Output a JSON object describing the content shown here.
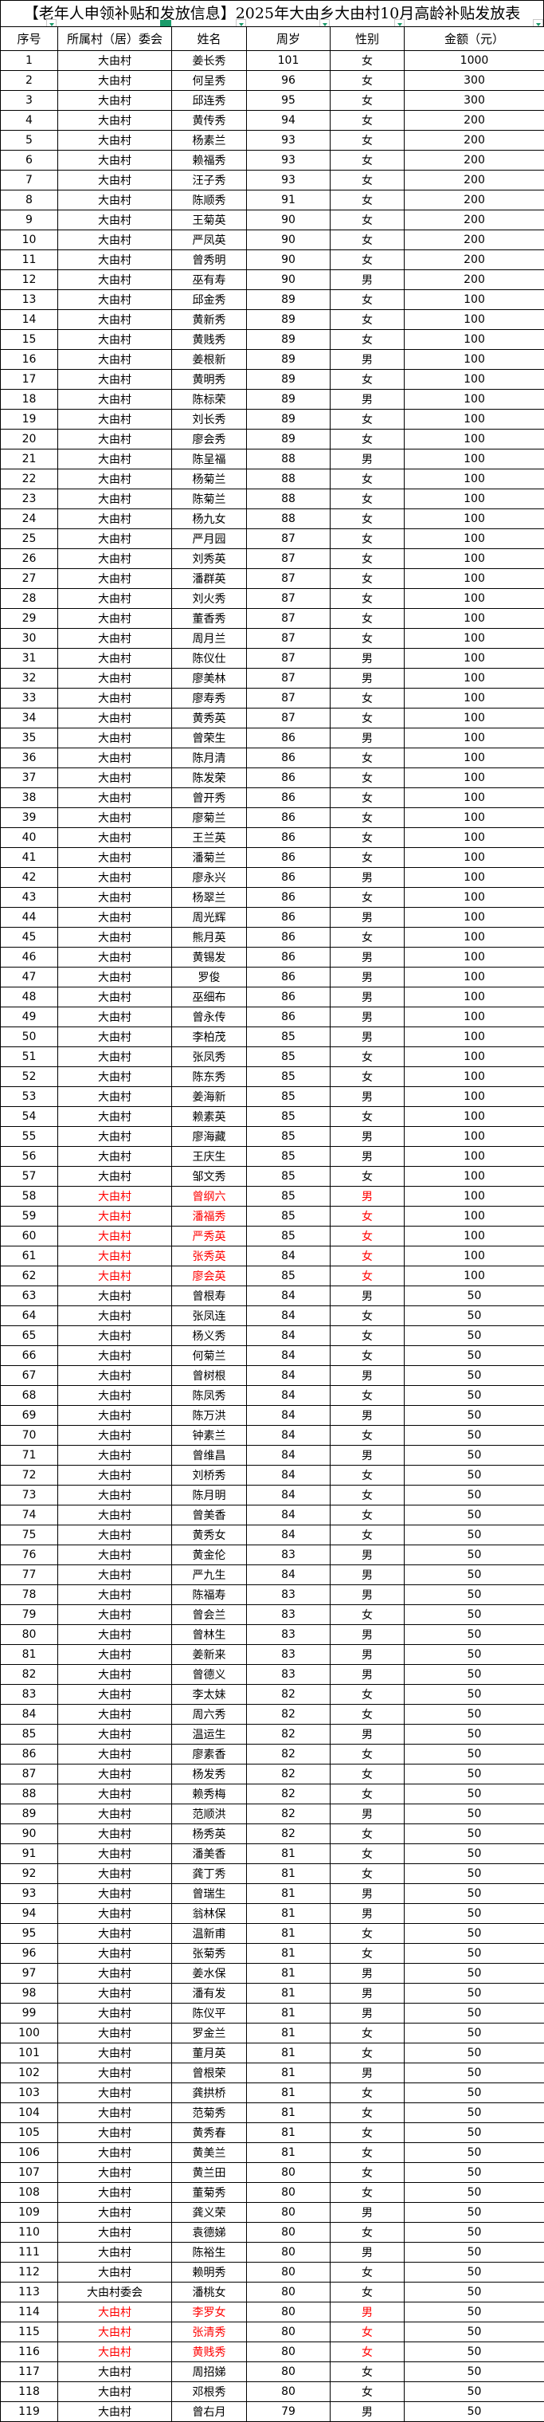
{
  "title": "【老年人申领补贴和发放信息】2025年大由乡大由村10月高龄补贴发放表",
  "colors": {
    "highlight": "#ff0000",
    "filter_accent": "#1a9b6a"
  },
  "headers": [
    "序号",
    "所属村（居）委会",
    "姓名",
    "周岁",
    "性别",
    "金额（元）"
  ],
  "rows": [
    [
      "1",
      "大由村",
      "姜长秀",
      "101",
      "女",
      "1000",
      false
    ],
    [
      "2",
      "大由村",
      "何呈秀",
      "96",
      "女",
      "300",
      false
    ],
    [
      "3",
      "大由村",
      "邱连秀",
      "95",
      "女",
      "300",
      false
    ],
    [
      "4",
      "大由村",
      "黄传秀",
      "94",
      "女",
      "200",
      false
    ],
    [
      "5",
      "大由村",
      "杨素兰",
      "93",
      "女",
      "200",
      false
    ],
    [
      "6",
      "大由村",
      "赖福秀",
      "93",
      "女",
      "200",
      false
    ],
    [
      "7",
      "大由村",
      "汪子秀",
      "93",
      "女",
      "200",
      false
    ],
    [
      "8",
      "大由村",
      "陈顺秀",
      "91",
      "女",
      "200",
      false
    ],
    [
      "9",
      "大由村",
      "王菊英",
      "90",
      "女",
      "200",
      false
    ],
    [
      "10",
      "大由村",
      "严凤英",
      "90",
      "女",
      "200",
      false
    ],
    [
      "11",
      "大由村",
      "曾秀明",
      "90",
      "女",
      "200",
      false
    ],
    [
      "12",
      "大由村",
      "巫有寿",
      "90",
      "男",
      "200",
      false
    ],
    [
      "13",
      "大由村",
      "邱金秀",
      "89",
      "女",
      "100",
      false
    ],
    [
      "14",
      "大由村",
      "黄新秀",
      "89",
      "女",
      "100",
      false
    ],
    [
      "15",
      "大由村",
      "黄贱秀",
      "89",
      "女",
      "100",
      false
    ],
    [
      "16",
      "大由村",
      "姜根新",
      "89",
      "男",
      "100",
      false
    ],
    [
      "17",
      "大由村",
      "黄明秀",
      "89",
      "女",
      "100",
      false
    ],
    [
      "18",
      "大由村",
      "陈标荣",
      "89",
      "男",
      "100",
      false
    ],
    [
      "19",
      "大由村",
      "刘长秀",
      "89",
      "女",
      "100",
      false
    ],
    [
      "20",
      "大由村",
      "廖会秀",
      "89",
      "女",
      "100",
      false
    ],
    [
      "21",
      "大由村",
      "陈呈福",
      "88",
      "男",
      "100",
      false
    ],
    [
      "22",
      "大由村",
      "杨菊兰",
      "88",
      "女",
      "100",
      false
    ],
    [
      "23",
      "大由村",
      "陈菊兰",
      "88",
      "女",
      "100",
      false
    ],
    [
      "24",
      "大由村",
      "杨九女",
      "88",
      "女",
      "100",
      false
    ],
    [
      "25",
      "大由村",
      "严月园",
      "87",
      "女",
      "100",
      false
    ],
    [
      "26",
      "大由村",
      "刘秀英",
      "87",
      "女",
      "100",
      false
    ],
    [
      "27",
      "大由村",
      "潘群英",
      "87",
      "女",
      "100",
      false
    ],
    [
      "28",
      "大由村",
      "刘火秀",
      "87",
      "女",
      "100",
      false
    ],
    [
      "29",
      "大由村",
      "董香秀",
      "87",
      "女",
      "100",
      false
    ],
    [
      "30",
      "大由村",
      "周月兰",
      "87",
      "女",
      "100",
      false
    ],
    [
      "31",
      "大由村",
      "陈仪仕",
      "87",
      "男",
      "100",
      false
    ],
    [
      "32",
      "大由村",
      "廖美林",
      "87",
      "男",
      "100",
      false
    ],
    [
      "33",
      "大由村",
      "廖寿秀",
      "87",
      "女",
      "100",
      false
    ],
    [
      "34",
      "大由村",
      "黄秀英",
      "87",
      "女",
      "100",
      false
    ],
    [
      "35",
      "大由村",
      "曾荣生",
      "86",
      "男",
      "100",
      false
    ],
    [
      "36",
      "大由村",
      "陈月清",
      "86",
      "女",
      "100",
      false
    ],
    [
      "37",
      "大由村",
      "陈发荣",
      "86",
      "女",
      "100",
      false
    ],
    [
      "38",
      "大由村",
      "曾开秀",
      "86",
      "女",
      "100",
      false
    ],
    [
      "39",
      "大由村",
      "廖菊兰",
      "86",
      "女",
      "100",
      false
    ],
    [
      "40",
      "大由村",
      "王兰英",
      "86",
      "女",
      "100",
      false
    ],
    [
      "41",
      "大由村",
      "潘菊兰",
      "86",
      "女",
      "100",
      false
    ],
    [
      "42",
      "大由村",
      "廖永兴",
      "86",
      "男",
      "100",
      false
    ],
    [
      "43",
      "大由村",
      "杨翠兰",
      "86",
      "女",
      "100",
      false
    ],
    [
      "44",
      "大由村",
      "周光辉",
      "86",
      "男",
      "100",
      false
    ],
    [
      "45",
      "大由村",
      "熊月英",
      "86",
      "女",
      "100",
      false
    ],
    [
      "46",
      "大由村",
      "黄锡发",
      "86",
      "男",
      "100",
      false
    ],
    [
      "47",
      "大由村",
      "罗俊",
      "86",
      "男",
      "100",
      false
    ],
    [
      "48",
      "大由村",
      "巫细布",
      "86",
      "男",
      "100",
      false
    ],
    [
      "49",
      "大由村",
      "曾永传",
      "86",
      "男",
      "100",
      false
    ],
    [
      "50",
      "大由村",
      "李柏茂",
      "85",
      "男",
      "100",
      false
    ],
    [
      "51",
      "大由村",
      "张凤秀",
      "85",
      "女",
      "100",
      false
    ],
    [
      "52",
      "大由村",
      "陈东秀",
      "85",
      "女",
      "100",
      false
    ],
    [
      "53",
      "大由村",
      "姜海新",
      "85",
      "男",
      "100",
      false
    ],
    [
      "54",
      "大由村",
      "赖素英",
      "85",
      "女",
      "100",
      false
    ],
    [
      "55",
      "大由村",
      "廖海藏",
      "85",
      "男",
      "100",
      false
    ],
    [
      "56",
      "大由村",
      "王庆生",
      "85",
      "男",
      "100",
      false
    ],
    [
      "57",
      "大由村",
      "邹文秀",
      "85",
      "女",
      "100",
      false
    ],
    [
      "58",
      "大由村",
      "曾纲六",
      "85",
      "男",
      "100",
      true
    ],
    [
      "59",
      "大由村",
      "潘福秀",
      "85",
      "女",
      "100",
      true
    ],
    [
      "60",
      "大由村",
      "严秀英",
      "85",
      "女",
      "100",
      true
    ],
    [
      "61",
      "大由村",
      "张秀英",
      "84",
      "女",
      "100",
      true
    ],
    [
      "62",
      "大由村",
      "廖会英",
      "85",
      "女",
      "100",
      true
    ],
    [
      "63",
      "大由村",
      "曾根寿",
      "84",
      "男",
      "50",
      false
    ],
    [
      "64",
      "大由村",
      "张凤连",
      "84",
      "女",
      "50",
      false
    ],
    [
      "65",
      "大由村",
      "杨义秀",
      "84",
      "女",
      "50",
      false
    ],
    [
      "66",
      "大由村",
      "何菊兰",
      "84",
      "女",
      "50",
      false
    ],
    [
      "67",
      "大由村",
      "曾树根",
      "84",
      "男",
      "50",
      false
    ],
    [
      "68",
      "大由村",
      "陈凤秀",
      "84",
      "女",
      "50",
      false
    ],
    [
      "69",
      "大由村",
      "陈万洪",
      "84",
      "男",
      "50",
      false
    ],
    [
      "70",
      "大由村",
      "钟素兰",
      "84",
      "女",
      "50",
      false
    ],
    [
      "71",
      "大由村",
      "曾维昌",
      "84",
      "男",
      "50",
      false
    ],
    [
      "72",
      "大由村",
      "刘桥秀",
      "84",
      "女",
      "50",
      false
    ],
    [
      "73",
      "大由村",
      "陈月明",
      "84",
      "女",
      "50",
      false
    ],
    [
      "74",
      "大由村",
      "曾美香",
      "84",
      "女",
      "50",
      false
    ],
    [
      "75",
      "大由村",
      "黄秀女",
      "84",
      "女",
      "50",
      false
    ],
    [
      "76",
      "大由村",
      "黄金伦",
      "83",
      "男",
      "50",
      false
    ],
    [
      "77",
      "大由村",
      "严九生",
      "84",
      "男",
      "50",
      false
    ],
    [
      "78",
      "大由村",
      "陈福寿",
      "83",
      "男",
      "50",
      false
    ],
    [
      "79",
      "大由村",
      "曾会兰",
      "83",
      "女",
      "50",
      false
    ],
    [
      "80",
      "大由村",
      "曾林生",
      "83",
      "男",
      "50",
      false
    ],
    [
      "81",
      "大由村",
      "姜新来",
      "83",
      "男",
      "50",
      false
    ],
    [
      "82",
      "大由村",
      "曾德义",
      "83",
      "男",
      "50",
      false
    ],
    [
      "83",
      "大由村",
      "李太妹",
      "82",
      "女",
      "50",
      false
    ],
    [
      "84",
      "大由村",
      "周六秀",
      "82",
      "女",
      "50",
      false
    ],
    [
      "85",
      "大由村",
      "温运生",
      "82",
      "男",
      "50",
      false
    ],
    [
      "86",
      "大由村",
      "廖素香",
      "82",
      "女",
      "50",
      false
    ],
    [
      "87",
      "大由村",
      "杨发秀",
      "82",
      "女",
      "50",
      false
    ],
    [
      "88",
      "大由村",
      "赖秀梅",
      "82",
      "女",
      "50",
      false
    ],
    [
      "89",
      "大由村",
      "范顺洪",
      "82",
      "男",
      "50",
      false
    ],
    [
      "90",
      "大由村",
      "杨秀英",
      "82",
      "女",
      "50",
      false
    ],
    [
      "91",
      "大由村",
      "潘美香",
      "81",
      "女",
      "50",
      false
    ],
    [
      "92",
      "大由村",
      "龚丁秀",
      "81",
      "女",
      "50",
      false
    ],
    [
      "93",
      "大由村",
      "曾瑞生",
      "81",
      "男",
      "50",
      false
    ],
    [
      "94",
      "大由村",
      "翁林保",
      "81",
      "男",
      "50",
      false
    ],
    [
      "95",
      "大由村",
      "温新甫",
      "81",
      "女",
      "50",
      false
    ],
    [
      "96",
      "大由村",
      "张菊秀",
      "81",
      "女",
      "50",
      false
    ],
    [
      "97",
      "大由村",
      "姜水保",
      "81",
      "男",
      "50",
      false
    ],
    [
      "98",
      "大由村",
      "潘有发",
      "81",
      "男",
      "50",
      false
    ],
    [
      "99",
      "大由村",
      "陈仪平",
      "81",
      "男",
      "50",
      false
    ],
    [
      "100",
      "大由村",
      "罗金兰",
      "81",
      "女",
      "50",
      false
    ],
    [
      "101",
      "大由村",
      "董月英",
      "81",
      "女",
      "50",
      false
    ],
    [
      "102",
      "大由村",
      "曾根荣",
      "81",
      "男",
      "50",
      false
    ],
    [
      "103",
      "大由村",
      "龚拱桥",
      "81",
      "女",
      "50",
      false
    ],
    [
      "104",
      "大由村",
      "范菊秀",
      "81",
      "女",
      "50",
      false
    ],
    [
      "105",
      "大由村",
      "黄秀春",
      "81",
      "女",
      "50",
      false
    ],
    [
      "106",
      "大由村",
      "黄美兰",
      "81",
      "女",
      "50",
      false
    ],
    [
      "107",
      "大由村",
      "黄兰田",
      "80",
      "女",
      "50",
      false
    ],
    [
      "108",
      "大由村",
      "董菊秀",
      "80",
      "女",
      "50",
      false
    ],
    [
      "109",
      "大由村",
      "龚义荣",
      "80",
      "男",
      "50",
      false
    ],
    [
      "110",
      "大由村",
      "袁德娣",
      "80",
      "女",
      "50",
      false
    ],
    [
      "111",
      "大由村",
      "陈裕生",
      "80",
      "男",
      "50",
      false
    ],
    [
      "112",
      "大由村",
      "赖明秀",
      "80",
      "女",
      "50",
      false
    ],
    [
      "113",
      "大由村委会",
      "潘桃女",
      "80",
      "女",
      "50",
      false
    ],
    [
      "114",
      "大由村",
      "李罗女",
      "80",
      "男",
      "50",
      true
    ],
    [
      "115",
      "大由村",
      "张清秀",
      "80",
      "女",
      "50",
      true
    ],
    [
      "116",
      "大由村",
      "黄贱秀",
      "80",
      "女",
      "50",
      true
    ],
    [
      "117",
      "大由村",
      "周招娣",
      "80",
      "女",
      "50",
      false
    ],
    [
      "118",
      "大由村",
      "邓根秀",
      "80",
      "女",
      "50",
      false
    ],
    [
      "119",
      "大由村",
      "曾右月",
      "79",
      "男",
      "50",
      false
    ]
  ]
}
